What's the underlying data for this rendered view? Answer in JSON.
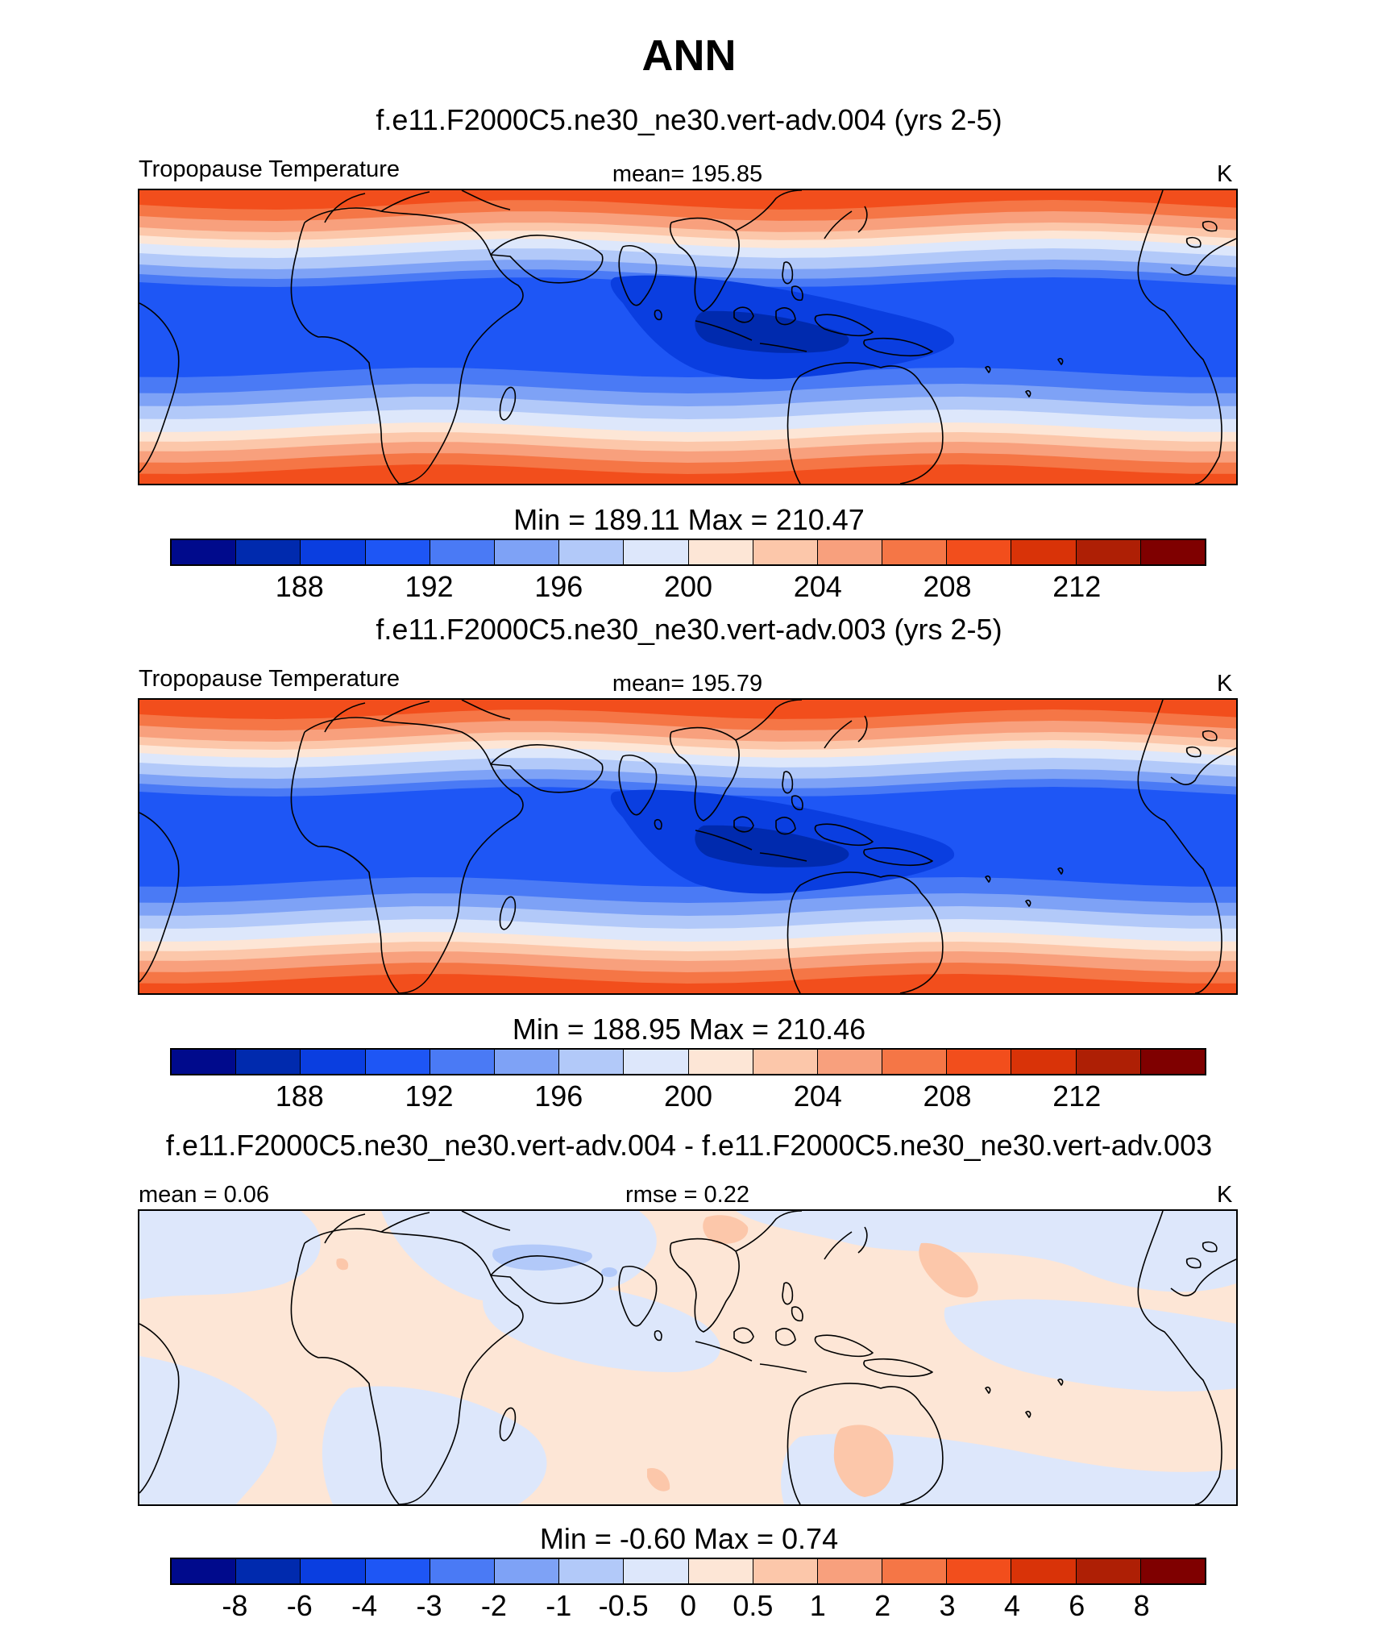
{
  "title": "ANN",
  "panels": [
    {
      "case_title": "f.e11.F2000C5.ne30_ne30.vert-adv.004 (yrs 2-5)",
      "left_label": "Tropopause Temperature",
      "center_label": "mean= 195.85",
      "units": "K",
      "minmax": "Min = 189.11 Max = 210.47",
      "colorbar_labels": [
        "188",
        "192",
        "196",
        "200",
        "204",
        "208",
        "212"
      ]
    },
    {
      "case_title": "f.e11.F2000C5.ne30_ne30.vert-adv.003 (yrs 2-5)",
      "left_label": "Tropopause Temperature",
      "center_label": "mean= 195.79",
      "units": "K",
      "minmax": "Min = 188.95 Max = 210.46",
      "colorbar_labels": [
        "188",
        "192",
        "196",
        "200",
        "204",
        "208",
        "212"
      ]
    },
    {
      "case_title": "f.e11.F2000C5.ne30_ne30.vert-adv.004 - f.e11.F2000C5.ne30_ne30.vert-adv.003",
      "left_label": "mean =   0.06",
      "center_label": "rmse =   0.22",
      "units": "K",
      "minmax": "Min =  -0.60 Max =   0.74",
      "colorbar_labels": [
        "-8",
        "-6",
        "-4",
        "-3",
        "-2",
        "-1",
        "-0.5",
        "0",
        "0.5",
        "1",
        "2",
        "3",
        "4",
        "6",
        "8"
      ]
    }
  ],
  "chart_data": [
    {
      "type": "heatmap",
      "title": "f.e11.F2000C5.ne30_ne30.vert-adv.004 (yrs 2-5)",
      "variable": "Tropopause Temperature",
      "units": "K",
      "mean": 195.85,
      "min": 189.11,
      "max": 210.47,
      "contour_levels": [
        186,
        188,
        190,
        192,
        194,
        196,
        198,
        200,
        202,
        204,
        206,
        208,
        210,
        212,
        214
      ],
      "colorbar_ticks": [
        188,
        192,
        196,
        200,
        204,
        208,
        212
      ],
      "colors": [
        "#000a8c",
        "#002aae",
        "#0a3ee0",
        "#1e56f5",
        "#4a7af5",
        "#7ea2f6",
        "#b2c9f9",
        "#dde7fb",
        "#fde6d6",
        "#fcc7aa",
        "#f8a07d",
        "#f57646",
        "#f24e1c",
        "#d93308",
        "#ae1f05",
        "#7f0000"
      ]
    },
    {
      "type": "heatmap",
      "title": "f.e11.F2000C5.ne30_ne30.vert-adv.003 (yrs 2-5)",
      "variable": "Tropopause Temperature",
      "units": "K",
      "mean": 195.79,
      "min": 188.95,
      "max": 210.46,
      "contour_levels": [
        186,
        188,
        190,
        192,
        194,
        196,
        198,
        200,
        202,
        204,
        206,
        208,
        210,
        212,
        214
      ],
      "colorbar_ticks": [
        188,
        192,
        196,
        200,
        204,
        208,
        212
      ],
      "colors": [
        "#000a8c",
        "#002aae",
        "#0a3ee0",
        "#1e56f5",
        "#4a7af5",
        "#7ea2f6",
        "#b2c9f9",
        "#dde7fb",
        "#fde6d6",
        "#fcc7aa",
        "#f8a07d",
        "#f57646",
        "#f24e1c",
        "#d93308",
        "#ae1f05",
        "#7f0000"
      ]
    },
    {
      "type": "heatmap",
      "title": "f.e11.F2000C5.ne30_ne30.vert-adv.004 - f.e11.F2000C5.ne30_ne30.vert-adv.003",
      "units": "K",
      "mean": 0.06,
      "rmse": 0.22,
      "min": -0.6,
      "max": 0.74,
      "contour_levels": [
        -10,
        -8,
        -6,
        -4,
        -3,
        -2,
        -1,
        -0.5,
        0,
        0.5,
        1,
        2,
        3,
        4,
        6,
        8,
        10
      ],
      "colorbar_ticks": [
        -8,
        -6,
        -4,
        -3,
        -2,
        -1,
        -0.5,
        0,
        0.5,
        1,
        2,
        3,
        4,
        6,
        8
      ],
      "colors": [
        "#000a8c",
        "#002aae",
        "#0a3ee0",
        "#1e56f5",
        "#4a7af5",
        "#7ea2f6",
        "#b2c9f9",
        "#dde7fb",
        "#fde6d6",
        "#fcc7aa",
        "#f8a07d",
        "#f57646",
        "#f24e1c",
        "#d93308",
        "#ae1f05",
        "#7f0000"
      ]
    }
  ]
}
